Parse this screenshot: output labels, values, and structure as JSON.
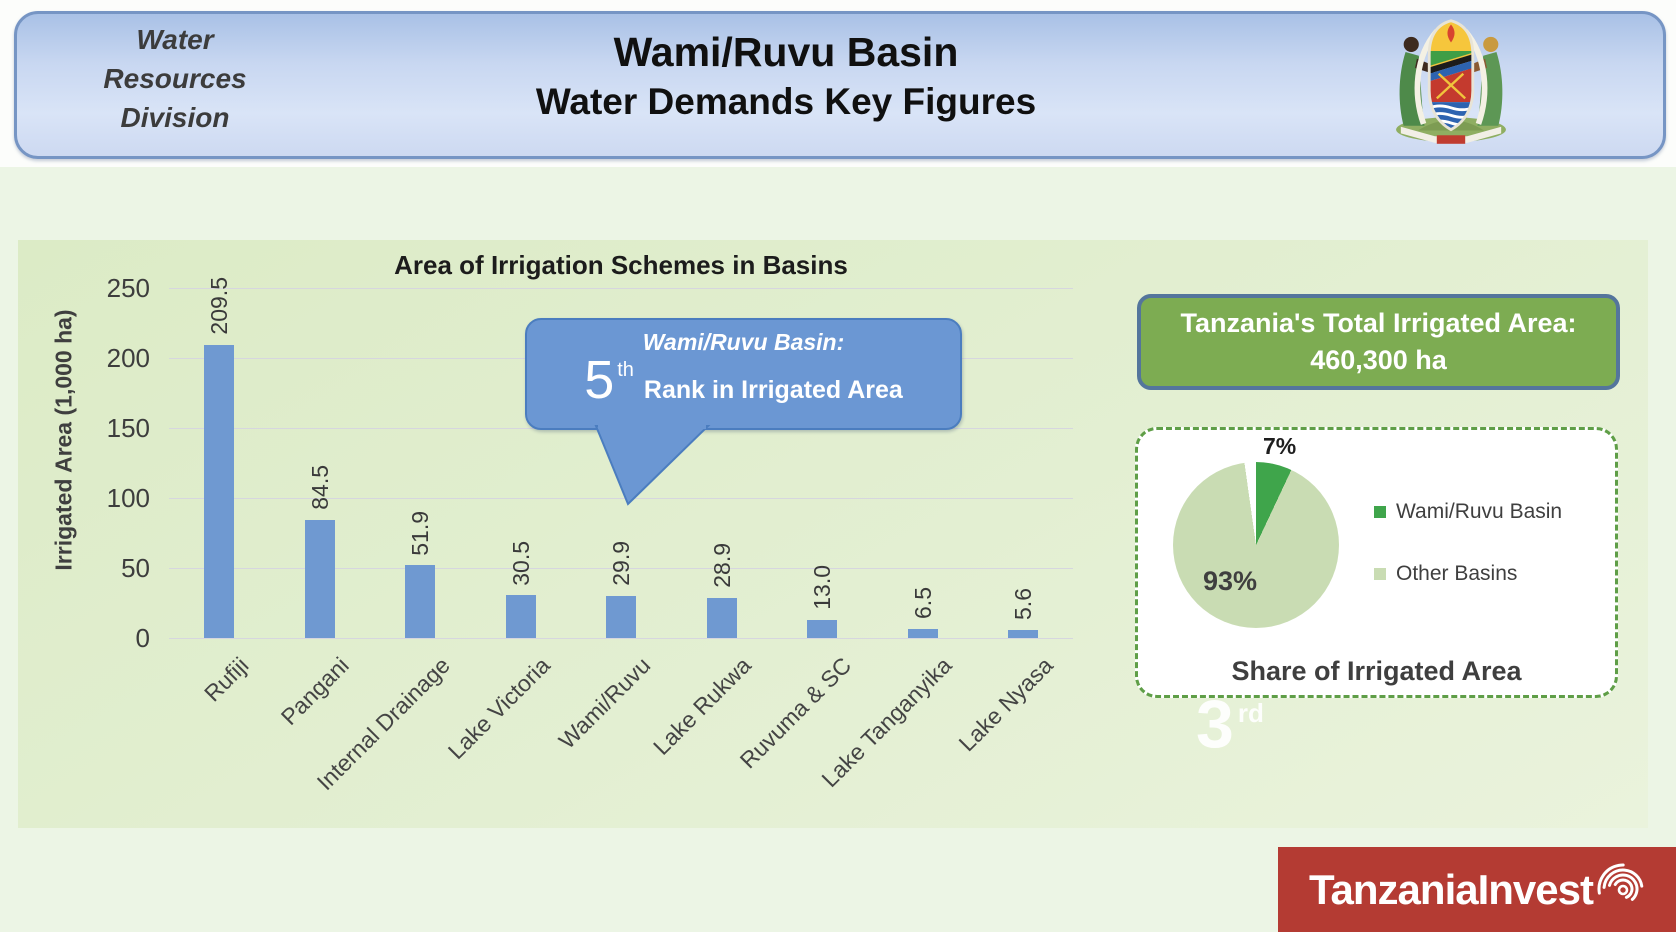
{
  "header": {
    "division": "Water\nResources\nDivision",
    "title_line1": "Wami/Ruvu Basin",
    "title_line2": "Water Demands Key Figures"
  },
  "chart_data": {
    "type": "bar",
    "title": "Area of Irrigation Schemes in Basins",
    "ylabel": "Irrigated Area (1,000 ha)",
    "categories": [
      "Rufiji",
      "Pangani",
      "Internal Drainage",
      "Lake Victoria",
      "Wami/Ruvu",
      "Lake Rukwa",
      "Ruvuma & SC",
      "Lake Tanganyika",
      "Lake Nyasa"
    ],
    "values": [
      209.5,
      84.5,
      51.9,
      30.5,
      29.9,
      28.9,
      13.0,
      6.5,
      5.6
    ],
    "value_labels": [
      "209.5",
      "84.5",
      "51.9",
      "30.5",
      "29.9",
      "28.9",
      "13.0",
      "6.5",
      "5.6"
    ],
    "yticks": [
      0,
      50,
      100,
      150,
      200,
      250
    ],
    "ylim": [
      0,
      250
    ],
    "grid": true,
    "bar_color": "#6f99d1",
    "callout": {
      "line1": "Wami/Ruvu Basin:",
      "rank_number": "5",
      "rank_suffix": "th",
      "rank_text": "Rank in Irrigated Area",
      "fill": "#6b97d3",
      "border": "#4b7dbf"
    }
  },
  "total_box": {
    "line1": "Tanzania's Total Irrigated Area:",
    "line2": "460,300 ha",
    "fill": "#7dac52"
  },
  "pie_chart": {
    "type": "pie",
    "labels": [
      "Wami/Ruvu Basin",
      "Other Basins"
    ],
    "values": [
      7,
      93
    ],
    "value_labels": [
      "7%",
      "93%"
    ],
    "colors": [
      "#3fa54b",
      "#c9dcb3"
    ],
    "legend_position": "right",
    "caption": "Share of Irrigated Area"
  },
  "rank3": {
    "number": "3",
    "suffix": "rd"
  },
  "footer_logo": {
    "text": "TanzaniaInvest",
    "background": "#b43b33"
  }
}
